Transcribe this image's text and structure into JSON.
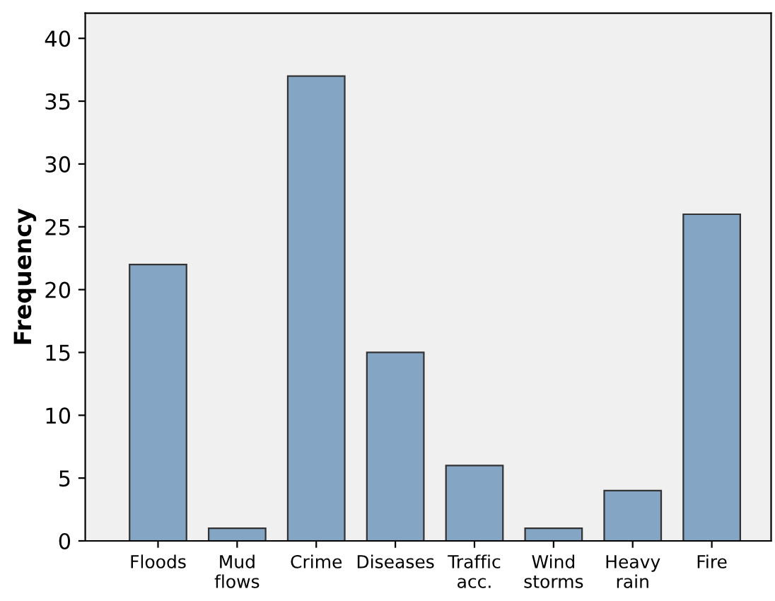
{
  "chart_data": {
    "type": "bar",
    "ylabel": "Frequency",
    "categories": [
      "Floods",
      "Mud\nflows",
      "Crime",
      "Diseases",
      "Traffic\nacc.",
      "Wind\nstorms",
      "Heavy\nrain",
      "Fire"
    ],
    "values": [
      22,
      1,
      37,
      15,
      6,
      1,
      4,
      26
    ],
    "color": "#84a5c4",
    "ylim": [
      0,
      42
    ],
    "yticks": [
      0,
      5,
      10,
      15,
      20,
      25,
      30,
      35,
      40
    ],
    "grid": false
  }
}
